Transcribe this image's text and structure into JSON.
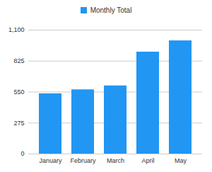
{
  "chart_data": {
    "type": "bar",
    "categories": [
      "January",
      "February",
      "March",
      "April",
      "May"
    ],
    "series": [
      {
        "name": "Monthly Total",
        "color": "#2196f3",
        "values": [
          535,
          570,
          605,
          905,
          1005
        ]
      }
    ],
    "ylim": [
      0,
      1100
    ],
    "yticks": [
      0,
      275,
      550,
      825,
      1100
    ],
    "grid": true,
    "legend": "top"
  }
}
